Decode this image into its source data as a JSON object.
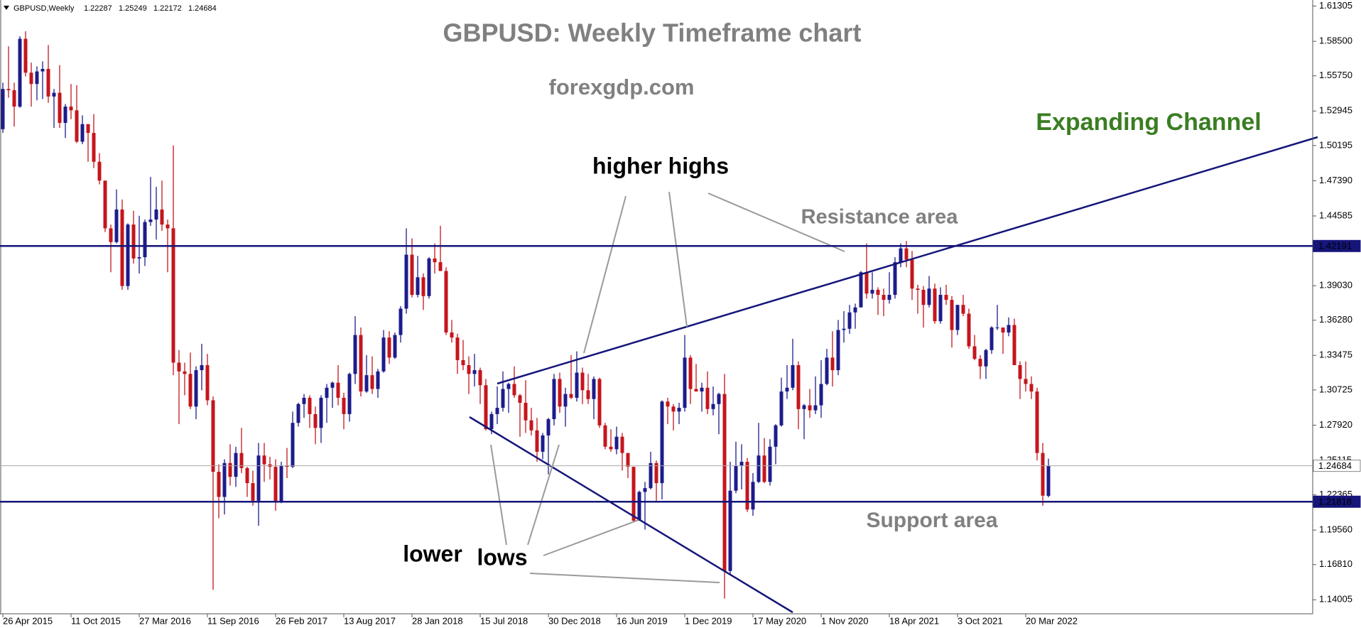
{
  "header": {
    "symbol": "GBPUSD,Weekly"
  },
  "chart_data": {
    "type": "candlestick",
    "title": "GBPUSD: Weekly Timeframe chart",
    "subtitle": "forexgdp.com",
    "annotations": {
      "channel": "Expanding Channel",
      "highs": "higher highs",
      "resistance": "Resistance area",
      "lower": "lower",
      "lows": "lows",
      "support": "Support area"
    },
    "up_color": "#1c1c8c",
    "down_color": "#c4161c",
    "ylim": [
      1.1289,
      1.6179
    ],
    "yticks": [
      1.61305,
      {
        "value": 1.585,
        "label": "1.58500"
      },
      {
        "value": 1.5575,
        "label": "1.55750"
      },
      1.52945,
      1.50195,
      {
        "value": 1.4739,
        "label": "1.47390"
      },
      1.44585,
      {
        "value": 1.3903,
        "label": "1.39030"
      },
      {
        "value": 1.3628,
        "label": "1.36280"
      },
      1.33475,
      1.30725,
      {
        "value": 1.2792,
        "label": "1.27920"
      },
      1.25115,
      1.22365,
      {
        "value": 1.1956,
        "label": "1.19560"
      },
      {
        "value": 1.1681,
        "label": "1.16810"
      },
      1.14005
    ],
    "xticks": [
      {
        "value": 0,
        "label": "26 Apr 2015"
      },
      {
        "value": 12,
        "label": "11 Oct 2015"
      },
      {
        "value": 24,
        "label": "27 Mar 2016"
      },
      {
        "value": 36,
        "label": "11 Sep 2016"
      },
      {
        "value": 48,
        "label": "26 Feb 2017"
      },
      {
        "value": 60,
        "label": "13 Aug 2017"
      },
      {
        "value": 72,
        "label": "28 Jan 2018"
      },
      {
        "value": 84,
        "label": "15 Jul 2018"
      },
      {
        "value": 96,
        "label": "30 Dec 2018"
      },
      {
        "value": 108,
        "label": "16 Jun 2019"
      },
      {
        "value": 120,
        "label": "1 Dec 2019"
      },
      {
        "value": 132,
        "label": "17 May 2020"
      },
      {
        "value": 144,
        "label": "1 Nov 2020"
      },
      {
        "value": 156,
        "label": "18 Apr 2021"
      },
      {
        "value": 168,
        "label": "3 Oct 2021"
      },
      {
        "value": 180,
        "label": "20 Mar 2022"
      }
    ],
    "price_lines": [
      {
        "value": 1.42191,
        "color": "#15157a",
        "style": "level"
      },
      {
        "value": 1.24684,
        "color": "#a8a8a8",
        "style": "current"
      },
      {
        "value": 1.21818,
        "color": "#15157a",
        "style": "level"
      }
    ],
    "candles": [
      [
        1.515,
        1.552,
        1.512,
        1.547
      ],
      [
        1.547,
        1.581,
        1.54,
        1.546
      ],
      [
        1.546,
        1.552,
        1.517,
        1.533
      ],
      [
        1.533,
        1.589,
        1.532,
        1.587
      ],
      [
        1.587,
        1.593,
        1.557,
        1.56
      ],
      [
        1.56,
        1.568,
        1.533,
        1.551
      ],
      [
        1.551,
        1.565,
        1.538,
        1.561
      ],
      [
        1.561,
        1.569,
        1.539,
        1.563
      ],
      [
        1.563,
        1.582,
        1.536,
        1.541
      ],
      [
        1.541,
        1.547,
        1.516,
        1.544
      ],
      [
        1.544,
        1.566,
        1.516,
        1.52
      ],
      [
        1.52,
        1.535,
        1.508,
        1.533
      ],
      [
        1.533,
        1.551,
        1.523,
        1.53
      ],
      [
        1.53,
        1.55,
        1.504,
        1.505
      ],
      [
        1.505,
        1.526,
        1.503,
        1.519
      ],
      [
        1.519,
        1.519,
        1.489,
        1.512
      ],
      [
        1.512,
        1.527,
        1.484,
        1.489
      ],
      [
        1.489,
        1.496,
        1.471,
        1.474
      ],
      [
        1.474,
        1.474,
        1.433,
        1.436
      ],
      [
        1.436,
        1.439,
        1.401,
        1.425
      ],
      [
        1.425,
        1.467,
        1.424,
        1.451
      ],
      [
        1.451,
        1.459,
        1.387,
        1.39
      ],
      [
        1.39,
        1.44,
        1.387,
        1.439
      ],
      [
        1.439,
        1.45,
        1.408,
        1.412
      ],
      [
        1.412,
        1.446,
        1.4,
        1.413
      ],
      [
        1.413,
        1.443,
        1.406,
        1.441
      ],
      [
        1.441,
        1.477,
        1.438,
        1.443
      ],
      [
        1.443,
        1.469,
        1.427,
        1.451
      ],
      [
        1.451,
        1.474,
        1.434,
        1.439
      ],
      [
        1.439,
        1.443,
        1.401,
        1.436
      ],
      [
        1.436,
        1.502,
        1.319,
        1.329
      ],
      [
        1.329,
        1.339,
        1.28,
        1.322
      ],
      [
        1.322,
        1.329,
        1.303,
        1.32
      ],
      [
        1.32,
        1.337,
        1.292,
        1.294
      ],
      [
        1.294,
        1.326,
        1.284,
        1.323
      ],
      [
        1.323,
        1.344,
        1.307,
        1.327
      ],
      [
        1.327,
        1.336,
        1.295,
        1.299
      ],
      [
        1.299,
        1.302,
        1.148,
        1.242
      ],
      [
        1.242,
        1.248,
        1.205,
        1.222
      ],
      [
        1.222,
        1.252,
        1.208,
        1.249
      ],
      [
        1.249,
        1.264,
        1.231,
        1.238
      ],
      [
        1.238,
        1.262,
        1.23,
        1.257
      ],
      [
        1.257,
        1.277,
        1.241,
        1.245
      ],
      [
        1.245,
        1.246,
        1.222,
        1.233
      ],
      [
        1.233,
        1.243,
        1.215,
        1.219
      ],
      [
        1.219,
        1.265,
        1.199,
        1.255
      ],
      [
        1.255,
        1.265,
        1.234,
        1.248
      ],
      [
        1.248,
        1.254,
        1.236,
        1.246
      ],
      [
        1.246,
        1.252,
        1.211,
        1.218
      ],
      [
        1.218,
        1.25,
        1.217,
        1.247
      ],
      [
        1.247,
        1.261,
        1.237,
        1.246
      ],
      [
        1.246,
        1.29,
        1.245,
        1.281
      ],
      [
        1.281,
        1.297,
        1.278,
        1.296
      ],
      [
        1.296,
        1.304,
        1.285,
        1.301
      ],
      [
        1.301,
        1.303,
        1.277,
        1.288
      ],
      [
        1.288,
        1.294,
        1.264,
        1.277
      ],
      [
        1.277,
        1.303,
        1.265,
        1.301
      ],
      [
        1.301,
        1.312,
        1.281,
        1.309
      ],
      [
        1.309,
        1.314,
        1.293,
        1.313
      ],
      [
        1.313,
        1.327,
        1.295,
        1.301
      ],
      [
        1.301,
        1.305,
        1.276,
        1.288
      ],
      [
        1.288,
        1.321,
        1.282,
        1.32
      ],
      [
        1.32,
        1.366,
        1.312,
        1.351
      ],
      [
        1.351,
        1.357,
        1.302,
        1.306
      ],
      [
        1.306,
        1.335,
        1.305,
        1.319
      ],
      [
        1.319,
        1.334,
        1.304,
        1.308
      ],
      [
        1.308,
        1.324,
        1.301,
        1.322
      ],
      [
        1.322,
        1.355,
        1.321,
        1.349
      ],
      [
        1.349,
        1.354,
        1.328,
        1.333
      ],
      [
        1.333,
        1.353,
        1.332,
        1.351
      ],
      [
        1.351,
        1.374,
        1.345,
        1.372
      ],
      [
        1.372,
        1.436,
        1.368,
        1.415
      ],
      [
        1.415,
        1.428,
        1.381,
        1.383
      ],
      [
        1.383,
        1.414,
        1.381,
        1.397
      ],
      [
        1.397,
        1.4,
        1.371,
        1.382
      ],
      [
        1.382,
        1.413,
        1.38,
        1.412
      ],
      [
        1.412,
        1.424,
        1.4,
        1.409
      ],
      [
        1.409,
        1.438,
        1.402,
        1.402
      ],
      [
        1.402,
        1.405,
        1.351,
        1.353
      ],
      [
        1.353,
        1.363,
        1.345,
        1.349
      ],
      [
        1.349,
        1.352,
        1.32,
        1.331
      ],
      [
        1.331,
        1.347,
        1.323,
        1.327
      ],
      [
        1.327,
        1.334,
        1.304,
        1.32
      ],
      [
        1.32,
        1.336,
        1.31,
        1.323
      ],
      [
        1.323,
        1.325,
        1.296,
        1.311
      ],
      [
        1.311,
        1.316,
        1.275,
        1.276
      ],
      [
        1.276,
        1.29,
        1.272,
        1.288
      ],
      [
        1.288,
        1.31,
        1.28,
        1.293
      ],
      [
        1.293,
        1.322,
        1.29,
        1.308
      ],
      [
        1.308,
        1.313,
        1.289,
        1.312
      ],
      [
        1.312,
        1.326,
        1.301,
        1.303
      ],
      [
        1.303,
        1.304,
        1.27,
        1.297
      ],
      [
        1.297,
        1.315,
        1.273,
        1.283
      ],
      [
        1.283,
        1.293,
        1.271,
        1.275
      ],
      [
        1.275,
        1.285,
        1.25,
        1.258
      ],
      [
        1.258,
        1.273,
        1.252,
        1.271
      ],
      [
        1.271,
        1.285,
        1.24,
        1.284
      ],
      [
        1.284,
        1.32,
        1.279,
        1.316
      ],
      [
        1.316,
        1.321,
        1.289,
        1.294
      ],
      [
        1.294,
        1.309,
        1.278,
        1.304
      ],
      [
        1.304,
        1.335,
        1.3,
        1.301
      ],
      [
        1.301,
        1.338,
        1.298,
        1.321
      ],
      [
        1.321,
        1.325,
        1.296,
        1.307
      ],
      [
        1.307,
        1.32,
        1.296,
        1.3
      ],
      [
        1.3,
        1.318,
        1.284,
        1.316
      ],
      [
        1.316,
        1.317,
        1.277,
        1.279
      ],
      [
        1.279,
        1.281,
        1.26,
        1.262
      ],
      [
        1.262,
        1.276,
        1.258,
        1.26
      ],
      [
        1.26,
        1.278,
        1.256,
        1.27
      ],
      [
        1.27,
        1.273,
        1.243,
        1.257
      ],
      [
        1.257,
        1.257,
        1.237,
        1.246
      ],
      [
        1.246,
        1.246,
        1.202,
        1.203
      ],
      [
        1.203,
        1.227,
        1.203,
        1.226
      ],
      [
        1.226,
        1.234,
        1.196,
        1.229
      ],
      [
        1.229,
        1.258,
        1.228,
        1.249
      ],
      [
        1.249,
        1.251,
        1.219,
        1.233
      ],
      [
        1.233,
        1.299,
        1.22,
        1.298
      ],
      [
        1.298,
        1.301,
        1.28,
        1.294
      ],
      [
        1.294,
        1.296,
        1.275,
        1.29
      ],
      [
        1.29,
        1.297,
        1.28,
        1.293
      ],
      [
        1.293,
        1.351,
        1.29,
        1.333
      ],
      [
        1.333,
        1.335,
        1.296,
        1.308
      ],
      [
        1.308,
        1.328,
        1.306,
        1.306
      ],
      [
        1.306,
        1.313,
        1.29,
        1.309
      ],
      [
        1.309,
        1.322,
        1.288,
        1.292
      ],
      [
        1.292,
        1.31,
        1.287,
        1.296
      ],
      [
        1.296,
        1.305,
        1.272,
        1.304
      ],
      [
        1.304,
        1.32,
        1.141,
        1.163
      ],
      [
        1.163,
        1.25,
        1.16,
        1.227
      ],
      [
        1.227,
        1.266,
        1.225,
        1.247
      ],
      [
        1.247,
        1.264,
        1.228,
        1.25
      ],
      [
        1.25,
        1.253,
        1.21,
        1.212
      ],
      [
        1.212,
        1.241,
        1.207,
        1.234
      ],
      [
        1.234,
        1.281,
        1.233,
        1.255
      ],
      [
        1.255,
        1.269,
        1.233,
        1.234
      ],
      [
        1.234,
        1.268,
        1.231,
        1.262
      ],
      [
        1.262,
        1.28,
        1.248,
        1.279
      ],
      [
        1.279,
        1.317,
        1.278,
        1.306
      ],
      [
        1.306,
        1.327,
        1.3,
        1.309
      ],
      [
        1.309,
        1.348,
        1.307,
        1.327
      ],
      [
        1.327,
        1.33,
        1.276,
        1.292
      ],
      [
        1.292,
        1.296,
        1.268,
        1.295
      ],
      [
        1.295,
        1.308,
        1.285,
        1.291
      ],
      [
        1.291,
        1.318,
        1.288,
        1.295
      ],
      [
        1.295,
        1.331,
        1.285,
        1.312
      ],
      [
        1.312,
        1.34,
        1.311,
        1.333
      ],
      [
        1.333,
        1.354,
        1.31,
        1.323
      ],
      [
        1.323,
        1.363,
        1.319,
        1.355
      ],
      [
        1.355,
        1.37,
        1.345,
        1.356
      ],
      [
        1.356,
        1.375,
        1.352,
        1.369
      ],
      [
        1.369,
        1.376,
        1.356,
        1.373
      ],
      [
        1.373,
        1.402,
        1.373,
        1.401
      ],
      [
        1.401,
        1.424,
        1.38,
        1.384
      ],
      [
        1.384,
        1.401,
        1.38,
        1.387
      ],
      [
        1.387,
        1.389,
        1.367,
        1.383
      ],
      [
        1.383,
        1.388,
        1.366,
        1.379
      ],
      [
        1.379,
        1.401,
        1.376,
        1.383
      ],
      [
        1.383,
        1.413,
        1.38,
        1.409
      ],
      [
        1.409,
        1.424,
        1.405,
        1.42
      ],
      [
        1.42,
        1.426,
        1.405,
        1.411
      ],
      [
        1.411,
        1.418,
        1.379,
        1.388
      ],
      [
        1.388,
        1.391,
        1.368,
        1.387
      ],
      [
        1.387,
        1.39,
        1.357,
        1.375
      ],
      [
        1.375,
        1.398,
        1.373,
        1.388
      ],
      [
        1.388,
        1.392,
        1.36,
        1.362
      ],
      [
        1.362,
        1.389,
        1.36,
        1.383
      ],
      [
        1.383,
        1.391,
        1.375,
        1.379
      ],
      [
        1.379,
        1.382,
        1.341,
        1.355
      ],
      [
        1.355,
        1.375,
        1.351,
        1.375
      ],
      [
        1.375,
        1.383,
        1.366,
        1.368
      ],
      [
        1.368,
        1.372,
        1.34,
        1.342
      ],
      [
        1.342,
        1.351,
        1.331,
        1.332
      ],
      [
        1.332,
        1.335,
        1.316,
        1.326
      ],
      [
        1.326,
        1.34,
        1.316,
        1.339
      ],
      [
        1.339,
        1.358,
        1.336,
        1.357
      ],
      [
        1.357,
        1.375,
        1.355,
        1.357
      ],
      [
        1.357,
        1.357,
        1.336,
        1.353
      ],
      [
        1.353,
        1.365,
        1.35,
        1.359
      ],
      [
        1.359,
        1.364,
        1.327,
        1.327
      ],
      [
        1.327,
        1.33,
        1.3,
        1.316
      ],
      [
        1.316,
        1.33,
        1.306,
        1.312
      ],
      [
        1.312,
        1.318,
        1.3,
        1.306
      ],
      [
        1.306,
        1.309,
        1.251,
        1.257
      ],
      [
        1.257,
        1.265,
        1.215,
        1.223
      ],
      [
        1.22287,
        1.25249,
        1.22172,
        1.24684
      ]
    ]
  }
}
